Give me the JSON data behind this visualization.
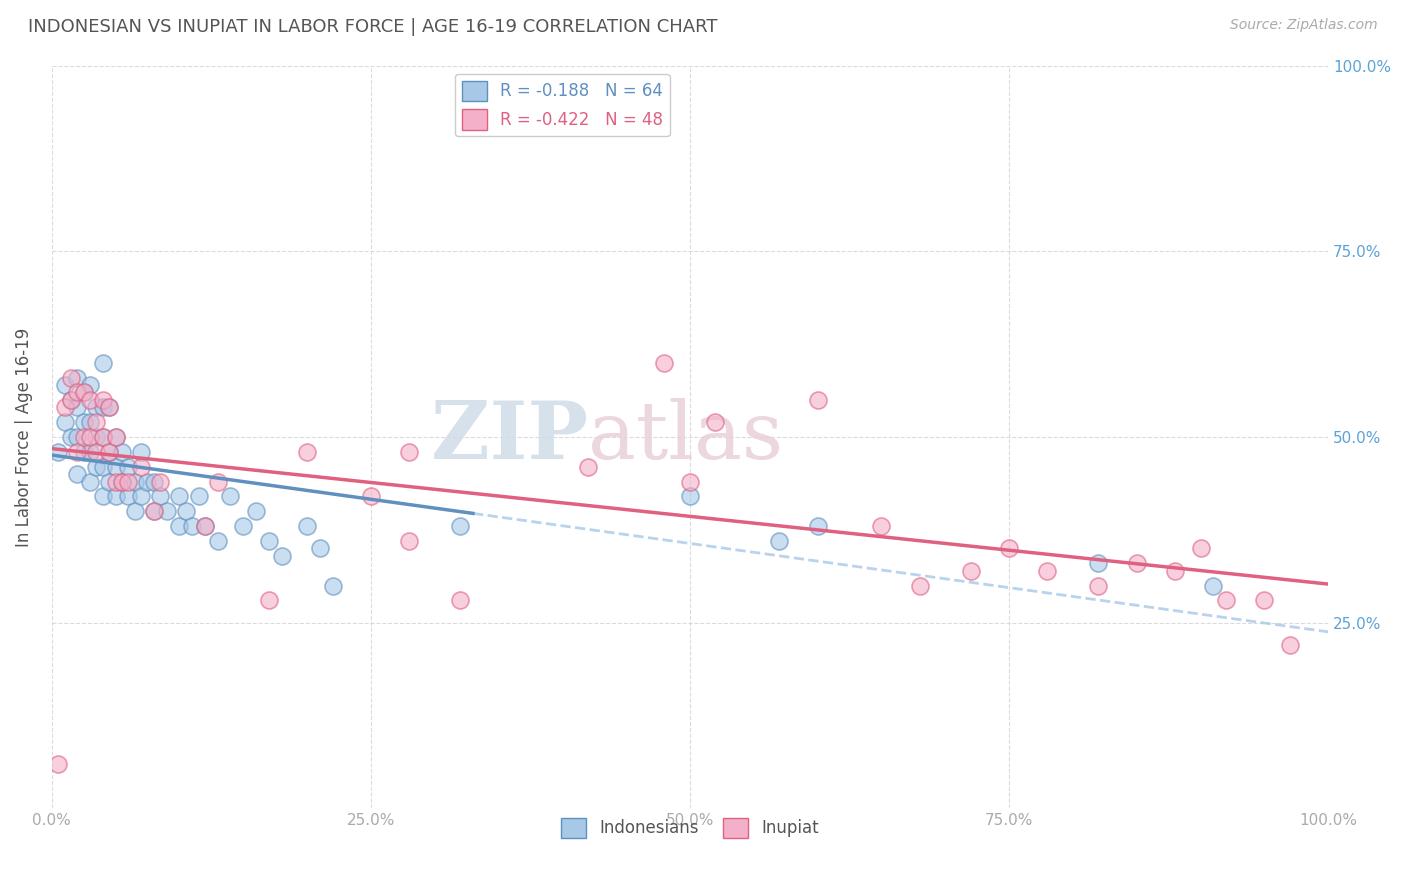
{
  "title": "INDONESIAN VS INUPIAT IN LABOR FORCE | AGE 16-19 CORRELATION CHART",
  "source": "Source: ZipAtlas.com",
  "ylabel": "In Labor Force | Age 16-19",
  "xlim": [
    0.0,
    1.0
  ],
  "ylim": [
    0.0,
    1.0
  ],
  "xticks": [
    0.0,
    0.25,
    0.5,
    0.75,
    1.0
  ],
  "yticks": [
    0.25,
    0.5,
    0.75,
    1.0
  ],
  "xticklabels": [
    "0.0%",
    "25.0%",
    "50.0%",
    "75.0%",
    "100.0%"
  ],
  "left_yticklabels": [
    "",
    "",
    "",
    ""
  ],
  "right_yticklabels": [
    "25.0%",
    "50.0%",
    "75.0%",
    "100.0%"
  ],
  "legend_labels": [
    "Indonesians",
    "Inupiat"
  ],
  "blue_r": -0.188,
  "blue_n": 64,
  "pink_r": -0.422,
  "pink_n": 48,
  "blue_color": "#a8c8e8",
  "pink_color": "#f4b0c8",
  "blue_edge": "#6090c0",
  "pink_edge": "#e06080",
  "watermark_color": "#d0dce8",
  "watermark_color2": "#e8d0d8",
  "blue_x": [
    0.005,
    0.01,
    0.01,
    0.015,
    0.015,
    0.02,
    0.02,
    0.02,
    0.02,
    0.025,
    0.025,
    0.025,
    0.03,
    0.03,
    0.03,
    0.03,
    0.035,
    0.035,
    0.035,
    0.04,
    0.04,
    0.04,
    0.04,
    0.04,
    0.045,
    0.045,
    0.045,
    0.05,
    0.05,
    0.05,
    0.055,
    0.055,
    0.06,
    0.06,
    0.065,
    0.065,
    0.07,
    0.07,
    0.075,
    0.08,
    0.08,
    0.085,
    0.09,
    0.1,
    0.1,
    0.105,
    0.11,
    0.115,
    0.12,
    0.13,
    0.14,
    0.15,
    0.16,
    0.17,
    0.18,
    0.2,
    0.21,
    0.22,
    0.32,
    0.5,
    0.57,
    0.6,
    0.82,
    0.91
  ],
  "blue_y": [
    0.48,
    0.52,
    0.57,
    0.5,
    0.55,
    0.45,
    0.5,
    0.54,
    0.58,
    0.48,
    0.52,
    0.56,
    0.44,
    0.48,
    0.52,
    0.57,
    0.46,
    0.5,
    0.54,
    0.42,
    0.46,
    0.5,
    0.54,
    0.6,
    0.44,
    0.48,
    0.54,
    0.42,
    0.46,
    0.5,
    0.44,
    0.48,
    0.42,
    0.46,
    0.4,
    0.44,
    0.42,
    0.48,
    0.44,
    0.4,
    0.44,
    0.42,
    0.4,
    0.38,
    0.42,
    0.4,
    0.38,
    0.42,
    0.38,
    0.36,
    0.42,
    0.38,
    0.4,
    0.36,
    0.34,
    0.38,
    0.35,
    0.3,
    0.38,
    0.42,
    0.36,
    0.38,
    0.33,
    0.3
  ],
  "pink_x": [
    0.005,
    0.01,
    0.015,
    0.015,
    0.02,
    0.02,
    0.025,
    0.025,
    0.03,
    0.03,
    0.035,
    0.035,
    0.04,
    0.04,
    0.045,
    0.045,
    0.05,
    0.05,
    0.055,
    0.06,
    0.07,
    0.08,
    0.085,
    0.12,
    0.13,
    0.17,
    0.2,
    0.25,
    0.28,
    0.28,
    0.32,
    0.42,
    0.48,
    0.5,
    0.52,
    0.6,
    0.65,
    0.68,
    0.72,
    0.75,
    0.78,
    0.82,
    0.85,
    0.88,
    0.9,
    0.92,
    0.95,
    0.97
  ],
  "pink_y": [
    0.06,
    0.54,
    0.55,
    0.58,
    0.48,
    0.56,
    0.5,
    0.56,
    0.5,
    0.55,
    0.48,
    0.52,
    0.5,
    0.55,
    0.48,
    0.54,
    0.44,
    0.5,
    0.44,
    0.44,
    0.46,
    0.4,
    0.44,
    0.38,
    0.44,
    0.28,
    0.48,
    0.42,
    0.36,
    0.48,
    0.28,
    0.46,
    0.6,
    0.44,
    0.52,
    0.55,
    0.38,
    0.3,
    0.32,
    0.35,
    0.32,
    0.3,
    0.33,
    0.32,
    0.35,
    0.28,
    0.28,
    0.22
  ],
  "background_color": "#ffffff",
  "grid_color": "#cccccc",
  "title_color": "#555555",
  "tick_color": "#aaaaaa",
  "right_ytick_color": "#5ba3d9"
}
